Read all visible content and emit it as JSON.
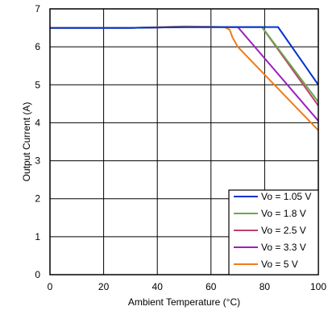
{
  "chart_data": {
    "type": "line",
    "xlabel": "Ambient Temperature (°C)",
    "ylabel": "Output Current (A)",
    "xlim": [
      0,
      100
    ],
    "ylim": [
      0,
      7
    ],
    "xticks": [
      0,
      20,
      40,
      60,
      80,
      100
    ],
    "yticks": [
      0,
      1,
      2,
      3,
      4,
      5,
      6,
      7
    ],
    "grid": true,
    "legend_position": "bottom-right",
    "series": [
      {
        "name": "Vo = 1.05 V",
        "color": "#0033cc",
        "x": [
          0,
          30,
          50,
          60,
          70,
          85,
          100
        ],
        "y": [
          6.5,
          6.5,
          6.52,
          6.52,
          6.52,
          6.52,
          5.0
        ]
      },
      {
        "name": "Vo = 1.8 V",
        "color": "#6aa84f",
        "x": [
          0,
          30,
          50,
          60,
          70,
          79,
          100
        ],
        "y": [
          6.5,
          6.5,
          6.52,
          6.52,
          6.52,
          6.52,
          4.55
        ]
      },
      {
        "name": "Vo = 2.5 V",
        "color": "#c0406e",
        "x": [
          0,
          30,
          50,
          60,
          70,
          79,
          100
        ],
        "y": [
          6.5,
          6.5,
          6.52,
          6.52,
          6.52,
          6.52,
          4.45
        ]
      },
      {
        "name": "Vo = 3.3 V",
        "color": "#9b1fbf",
        "x": [
          0,
          30,
          50,
          60,
          70,
          100
        ],
        "y": [
          6.5,
          6.5,
          6.52,
          6.52,
          6.52,
          4.05
        ]
      },
      {
        "name": "Vo = 5 V",
        "color": "#f07b16",
        "x": [
          0,
          30,
          50,
          60,
          65,
          67,
          68,
          70,
          100
        ],
        "y": [
          6.5,
          6.5,
          6.54,
          6.53,
          6.52,
          6.45,
          6.25,
          6.0,
          3.8
        ]
      }
    ]
  }
}
